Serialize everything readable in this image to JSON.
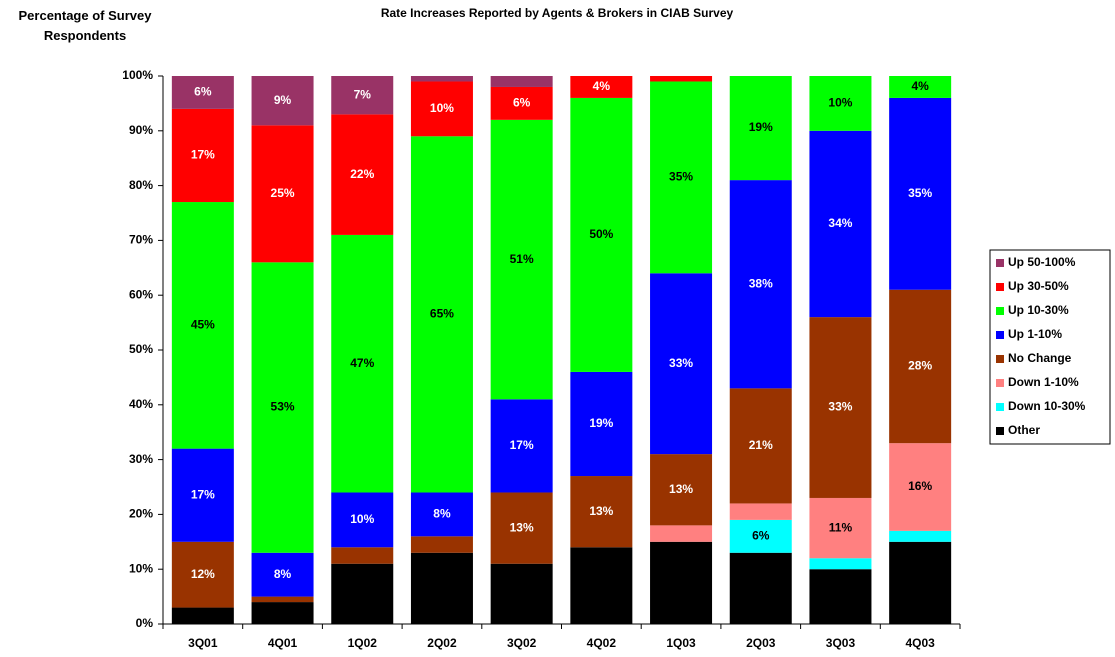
{
  "chart_data": {
    "type": "stacked_bar",
    "title": "Rate Increases Reported by Agents & Brokers in CIAB Survey",
    "y_label": "Percentage of Survey Respondents",
    "categories": [
      "3Q01",
      "4Q01",
      "1Q02",
      "2Q02",
      "3Q02",
      "4Q02",
      "1Q03",
      "2Q03",
      "3Q03",
      "4Q03"
    ],
    "ylim": [
      0,
      100
    ],
    "yticks": [
      {
        "value": 0,
        "label": "0%"
      },
      {
        "value": 10,
        "label": "10%"
      },
      {
        "value": 20,
        "label": "20%"
      },
      {
        "value": 30,
        "label": "30%"
      },
      {
        "value": 40,
        "label": "40%"
      },
      {
        "value": 50,
        "label": "50%"
      },
      {
        "value": 60,
        "label": "60%"
      },
      {
        "value": 70,
        "label": "70%"
      },
      {
        "value": 80,
        "label": "80%"
      },
      {
        "value": 90,
        "label": "90%"
      },
      {
        "value": 100,
        "label": "100%"
      }
    ],
    "legend": "right",
    "series": [
      {
        "name": "Up 50-100%",
        "color": "#993366",
        "values": [
          6,
          9,
          7,
          1,
          2,
          0,
          0,
          0,
          0,
          0
        ],
        "value_labels": [
          "6%",
          "9%",
          "7%",
          null,
          null,
          null,
          null,
          null,
          null,
          null
        ]
      },
      {
        "name": "Up 30-50%",
        "color": "#ff0000",
        "values": [
          17,
          25,
          22,
          10,
          6,
          4,
          1,
          0,
          0,
          0
        ],
        "value_labels": [
          "17%",
          "25%",
          "22%",
          "10%",
          "6%",
          "4%",
          null,
          null,
          null,
          null
        ]
      },
      {
        "name": "Up 10-30%",
        "color": "#00ff00",
        "values": [
          45,
          53,
          47,
          65,
          51,
          50,
          35,
          19,
          10,
          4
        ],
        "value_labels": [
          "45%",
          "53%",
          "47%",
          "65%",
          "51%",
          "50%",
          "35%",
          "19%",
          "10%",
          "4%"
        ]
      },
      {
        "name": "Up 1-10%",
        "color": "#0000ff",
        "values": [
          17,
          8,
          10,
          8,
          17,
          19,
          33,
          38,
          34,
          35
        ],
        "value_labels": [
          "17%",
          "8%",
          "10%",
          "8%",
          "17%",
          "19%",
          "33%",
          "38%",
          "34%",
          "35%"
        ]
      },
      {
        "name": "No Change",
        "color": "#993300",
        "values": [
          12,
          1,
          3,
          3,
          13,
          13,
          13,
          21,
          33,
          28
        ],
        "value_labels": [
          "12%",
          null,
          null,
          null,
          "13%",
          "13%",
          "13%",
          "21%",
          "33%",
          "28%"
        ]
      },
      {
        "name": "Down 1-10%",
        "color": "#ff8080",
        "values": [
          0,
          0,
          0,
          0,
          0,
          0,
          3,
          3,
          11,
          16
        ],
        "value_labels": [
          null,
          null,
          null,
          null,
          null,
          null,
          null,
          null,
          "11%",
          "16%"
        ]
      },
      {
        "name": "Down 10-30%",
        "color": "#00ffff",
        "values": [
          0,
          0,
          0,
          0,
          0,
          0,
          0,
          6,
          2,
          2
        ],
        "value_labels": [
          null,
          null,
          null,
          null,
          null,
          null,
          null,
          "6%",
          null,
          null
        ]
      },
      {
        "name": "Other",
        "color": "#000000",
        "values": [
          3,
          4,
          11,
          13,
          11,
          14,
          15,
          13,
          10,
          15
        ],
        "value_labels": [
          null,
          null,
          null,
          null,
          null,
          null,
          null,
          null,
          null,
          null
        ]
      }
    ]
  }
}
